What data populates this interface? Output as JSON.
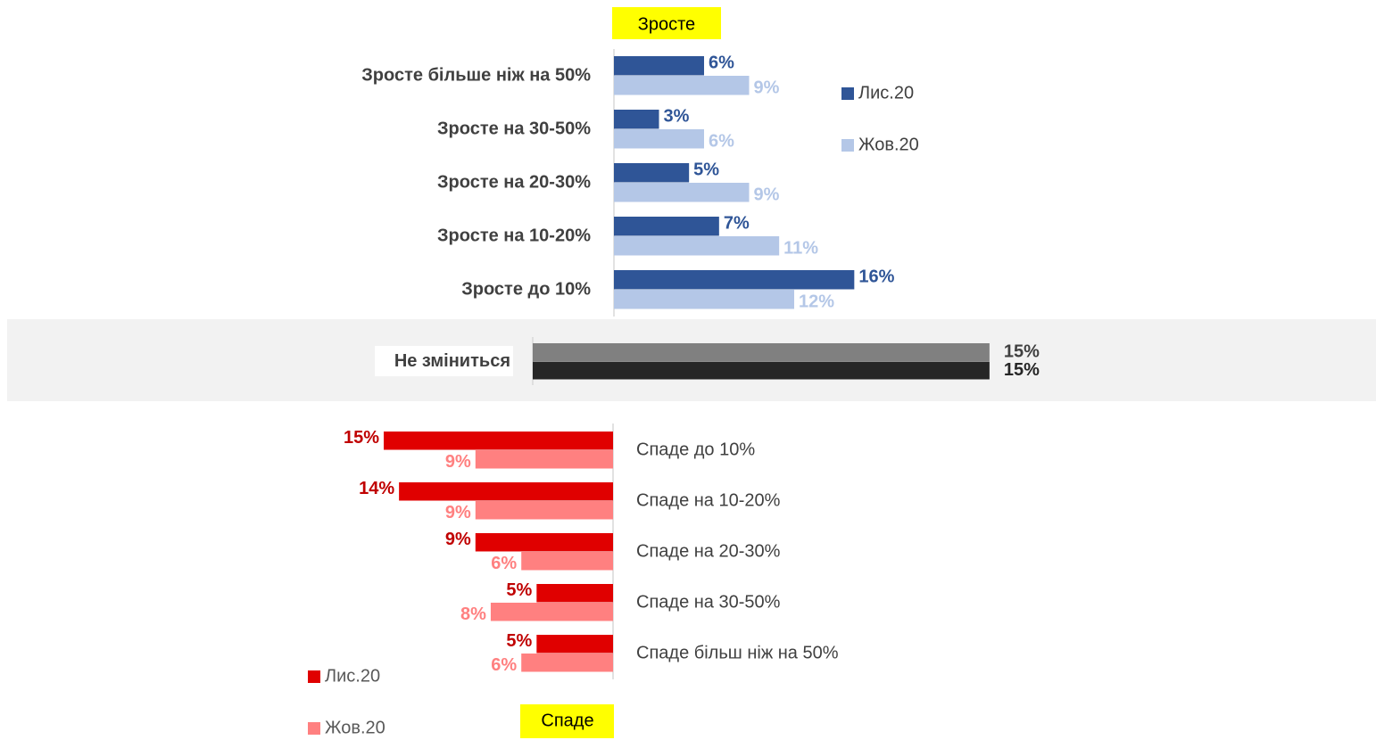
{
  "chart_data": [
    {
      "type": "bar",
      "orientation": "horizontal",
      "title": "Зросте",
      "categories": [
        "Зросте більше ніж на 50%",
        "Зросте на 30-50%",
        "Зросте на 20-30%",
        "Зросте на 10-20%",
        "Зросте до 10%"
      ],
      "series": [
        {
          "name": "Лис.20",
          "color": "#2f5597",
          "values": [
            6,
            3,
            5,
            7,
            16
          ],
          "value_labels": [
            "6%",
            "3%",
            "5%",
            "7%",
            "16%"
          ]
        },
        {
          "name": "Жов.20",
          "color": "#b4c7e7",
          "values": [
            9,
            6,
            9,
            11,
            12
          ],
          "value_labels": [
            "9%",
            "6%",
            "9%",
            "11%",
            "12%"
          ]
        }
      ],
      "xlim": [
        0,
        30
      ],
      "legend": "right"
    },
    {
      "type": "bar",
      "orientation": "horizontal",
      "categories": [
        "Не зміниться"
      ],
      "series": [
        {
          "color": "#808080",
          "values": [
            15
          ],
          "value_labels": [
            "15%"
          ]
        },
        {
          "color": "#262626",
          "values": [
            15
          ],
          "value_labels": [
            "15%"
          ]
        }
      ],
      "xlim": [
        0,
        16
      ]
    },
    {
      "type": "bar",
      "orientation": "horizontal",
      "title": "Спаде",
      "xreverse": true,
      "categories": [
        "Спаде до 10%",
        "Спаде на 10-20%",
        "Спаде на 20-30%",
        "Спаде на 30-50%",
        "Спаде більш ніж на 50%"
      ],
      "series": [
        {
          "name": "Лис.20",
          "color": "#e00000",
          "values": [
            15,
            14,
            9,
            5,
            5
          ],
          "value_labels": [
            "15%",
            "14%",
            "9%",
            "5%",
            "5%"
          ]
        },
        {
          "name": "Жов.20",
          "color": "#ff8080",
          "values": [
            9,
            9,
            6,
            8,
            6
          ],
          "value_labels": [
            "9%",
            "9%",
            "6%",
            "8%",
            "6%"
          ]
        }
      ],
      "xlim": [
        0,
        30
      ],
      "legend": "bottom-left"
    }
  ]
}
